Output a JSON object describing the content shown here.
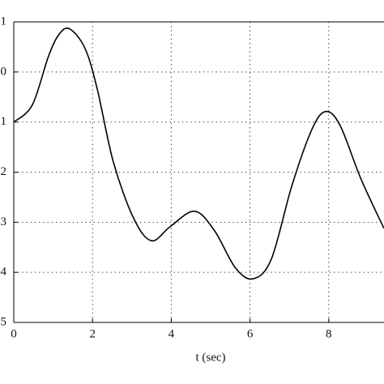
{
  "chart_data": {
    "type": "line",
    "x_label": "t (sec)",
    "x": [
      0,
      0.47,
      0.88,
      1.15,
      1.42,
      1.81,
      2.12,
      2.53,
      3.05,
      3.5,
      3.97,
      4.59,
      5.1,
      5.62,
      6.07,
      6.54,
      7.06,
      7.57,
      7.92,
      8.29,
      8.81,
      9.4
    ],
    "series": [
      {
        "color": "#000000",
        "values": [
          -1.0,
          -0.66,
          0.31,
          0.75,
          0.86,
          0.47,
          -0.34,
          -1.8,
          -2.93,
          -3.37,
          -3.09,
          -2.78,
          -3.17,
          -3.9,
          -4.13,
          -3.74,
          -2.28,
          -1.15,
          -0.79,
          -1.07,
          -2.12,
          -3.12
        ]
      }
    ],
    "xlim": [
      0,
      10
    ],
    "xticks": [
      0,
      2,
      4,
      6,
      8
    ],
    "ylim": [
      -5,
      1
    ],
    "yticks": [
      {
        "value": 1,
        "label": "1"
      },
      0,
      {
        "value": -1,
        "label": "1"
      },
      {
        "value": -2,
        "label": "2"
      },
      {
        "value": -3,
        "label": "3"
      },
      {
        "value": -4,
        "label": "4"
      },
      {
        "value": -5,
        "label": "5"
      }
    ],
    "grid": true
  }
}
